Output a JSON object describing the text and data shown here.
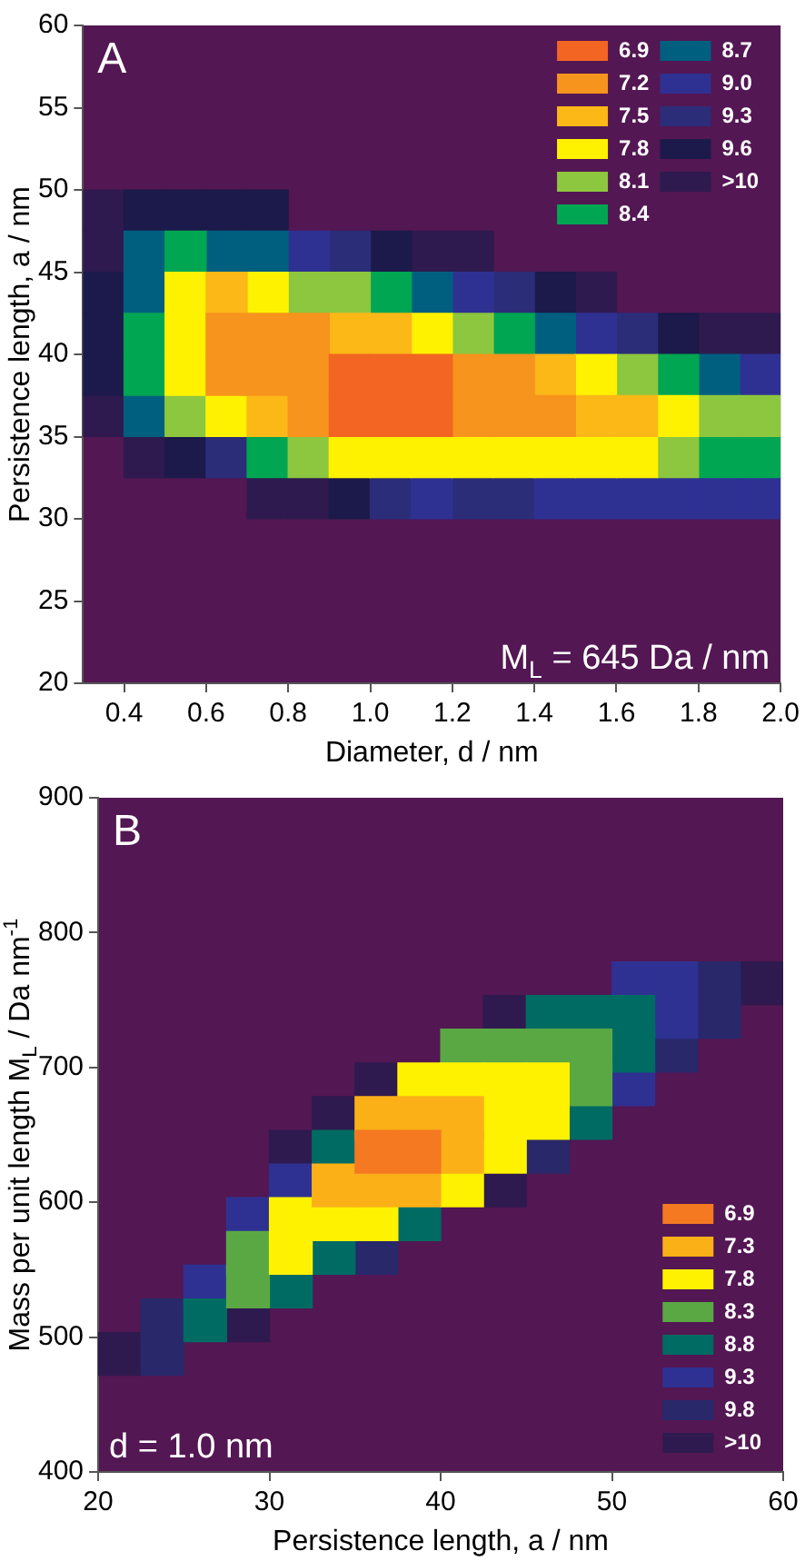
{
  "chart_data": [
    {
      "type": "scatter",
      "marker": "square",
      "legend": "top right",
      "xlabel": "Diameter, d / nm",
      "ylabel": "Persistence length, a / nm",
      "annotations": [
        "A",
        "M$_{L}$ = 645 Da / nm"
      ],
      "xlim": [
        0.3,
        2.0
      ],
      "ylim": [
        20,
        60
      ],
      "xticks": [
        0.4,
        0.6,
        0.8,
        {
          "value": 1,
          "label": "1.0"
        },
        1.2,
        1.4,
        1.6,
        1.8,
        {
          "value": 2,
          "label": "2.0"
        }
      ],
      "yticks": [
        20,
        25,
        30,
        35,
        40,
        45,
        50,
        55,
        60
      ],
      "series": [
        {
          "name": "6.9",
          "color": "#f26522",
          "x": [
            0.95,
            1.05,
            1.15,
            0.95,
            1.05,
            1.15
          ],
          "values": [
            38.75,
            38.75,
            38.75,
            36.25,
            36.25,
            36.25
          ]
        },
        {
          "name": "7.2",
          "color": "#f7941d",
          "x": [
            0.65,
            0.75,
            0.85,
            0.65,
            0.75,
            0.85,
            1.25,
            1.35,
            0.85,
            1.25,
            1.35,
            1.45
          ],
          "values": [
            41.25,
            41.25,
            41.25,
            38.75,
            38.75,
            38.75,
            38.75,
            38.75,
            36.25,
            36.25,
            36.25,
            36.25
          ]
        },
        {
          "name": "7.5",
          "color": "#fbb817",
          "x": [
            0.65,
            0.95,
            1.05,
            1.45,
            0.75,
            1.55,
            1.65
          ],
          "values": [
            43.75,
            41.25,
            41.25,
            38.75,
            36.25,
            36.25,
            36.25
          ]
        },
        {
          "name": "7.8",
          "color": "#fff200",
          "x": [
            0.55,
            0.75,
            0.55,
            1.15,
            0.55,
            1.55,
            0.65,
            1.75,
            0.95,
            1.05,
            1.15,
            1.25,
            1.35,
            1.45,
            1.55,
            1.65
          ],
          "values": [
            43.75,
            43.75,
            41.25,
            41.25,
            38.75,
            38.75,
            36.25,
            36.25,
            33.75,
            33.75,
            33.75,
            33.75,
            33.75,
            33.75,
            33.75,
            33.75
          ]
        },
        {
          "name": "8.1",
          "color": "#8dc63f",
          "x": [
            0.85,
            0.95,
            1.25,
            1.65,
            0.55,
            1.85,
            1.95,
            0.85,
            1.75
          ],
          "values": [
            43.75,
            43.75,
            41.25,
            38.75,
            36.25,
            36.25,
            36.25,
            33.75,
            33.75
          ]
        },
        {
          "name": "8.4",
          "color": "#00a651",
          "x": [
            0.55,
            1.05,
            0.45,
            1.35,
            0.45,
            1.75,
            0.75,
            1.85,
            1.95
          ],
          "values": [
            46.25,
            43.75,
            41.25,
            41.25,
            38.75,
            38.75,
            33.75,
            33.75,
            33.75
          ]
        },
        {
          "name": "8.7",
          "color": "#005f7f",
          "x": [
            0.45,
            0.65,
            0.75,
            0.45,
            1.15,
            1.45,
            1.85,
            0.45
          ],
          "values": [
            46.25,
            46.25,
            46.25,
            43.75,
            43.75,
            41.25,
            38.75,
            36.25
          ]
        },
        {
          "name": "9.0",
          "color": "#2e3192",
          "x": [
            0.85,
            1.25,
            1.55,
            1.95,
            1.15,
            1.45,
            1.55,
            1.65,
            1.75,
            1.85,
            1.95
          ],
          "values": [
            46.25,
            43.75,
            41.25,
            38.75,
            31.25,
            31.25,
            31.25,
            31.25,
            31.25,
            31.25,
            31.25
          ]
        },
        {
          "name": "9.3",
          "color": "#2b2d78",
          "x": [
            0.95,
            1.35,
            1.65,
            0.65,
            1.05,
            1.25,
            1.35
          ],
          "values": [
            46.25,
            43.75,
            41.25,
            33.75,
            31.25,
            31.25,
            31.25
          ]
        },
        {
          "name": "9.6",
          "color": "#1b1a4a",
          "x": [
            0.45,
            0.55,
            0.65,
            0.75,
            1.05,
            0.35,
            1.45,
            0.35,
            1.75,
            0.35,
            0.55,
            0.95
          ],
          "values": [
            48.75,
            48.75,
            48.75,
            48.75,
            46.25,
            43.75,
            43.75,
            41.25,
            41.25,
            38.75,
            33.75,
            31.25
          ]
        },
        {
          "name": ">10",
          "color": "#2e1a4e",
          "x": [
            0.35,
            0.35,
            1.15,
            1.25,
            1.55,
            1.85,
            1.95,
            0.35,
            0.45,
            0.75,
            0.85
          ],
          "values": [
            48.75,
            46.25,
            46.25,
            46.25,
            43.75,
            41.25,
            41.25,
            36.25,
            33.75,
            31.25,
            31.25
          ]
        }
      ]
    },
    {
      "type": "scatter",
      "marker": "square",
      "legend": "bottom right",
      "xlabel": "Persistence length, a / nm",
      "ylabel": "Mass per unit length M$_{L}$ / Da nm$^{-1}$",
      "annotations": [
        "B",
        "d = 1.0 nm"
      ],
      "xlim": [
        20,
        60
      ],
      "ylim": [
        400,
        900
      ],
      "xticks": [
        20,
        30,
        40,
        50,
        60
      ],
      "yticks": [
        400,
        500,
        600,
        700,
        800,
        900
      ],
      "series": [
        {
          "name": "6.9",
          "color": "#f47920",
          "x": [
            36.25,
            38.75
          ],
          "values": [
            637.5,
            637.5
          ]
        },
        {
          "name": "7.3",
          "color": "#fbb018",
          "x": [
            36.25,
            38.75,
            41.25,
            41.25,
            33.75,
            36.25,
            38.75
          ],
          "values": [
            662.5,
            662.5,
            662.5,
            637.5,
            612.5,
            612.5,
            612.5
          ]
        },
        {
          "name": "7.8",
          "color": "#fff200",
          "x": [
            38.75,
            41.25,
            43.75,
            46.25,
            43.75,
            46.25,
            43.75,
            41.25,
            31.25,
            33.75,
            36.25,
            31.25
          ],
          "values": [
            687.5,
            687.5,
            687.5,
            687.5,
            662.5,
            662.5,
            637.5,
            612.5,
            587.5,
            587.5,
            587.5,
            562.5
          ]
        },
        {
          "name": "8.3",
          "color": "#5aa844",
          "x": [
            41.25,
            43.75,
            46.25,
            48.75,
            48.75,
            28.75,
            28.75
          ],
          "values": [
            712.5,
            712.5,
            712.5,
            712.5,
            687.5,
            562.5,
            537.5
          ]
        },
        {
          "name": "8.8",
          "color": "#006b63",
          "x": [
            46.25,
            48.75,
            51.25,
            51.25,
            48.75,
            33.75,
            38.75,
            33.75,
            31.25,
            26.25
          ],
          "values": [
            737.5,
            737.5,
            737.5,
            712.5,
            662.5,
            637.5,
            587.5,
            562.5,
            537.5,
            512.5
          ]
        },
        {
          "name": "9.3",
          "color": "#2e3192",
          "x": [
            51.25,
            53.75,
            53.75,
            51.25,
            31.25,
            28.75,
            26.25
          ],
          "values": [
            762.5,
            762.5,
            737.5,
            687.5,
            612.5,
            587.5,
            537.5
          ]
        },
        {
          "name": "9.8",
          "color": "#28286a",
          "x": [
            56.25,
            56.25,
            53.75,
            46.25,
            36.25,
            23.75,
            23.75
          ],
          "values": [
            762.5,
            737.5,
            712.5,
            637.5,
            562.5,
            512.5,
            487.5
          ]
        },
        {
          "name": ">10",
          "color": "#2e1a4e",
          "x": [
            58.75,
            43.75,
            36.25,
            33.75,
            31.25,
            43.75,
            28.75,
            21.25
          ],
          "values": [
            762.5,
            737.5,
            687.5,
            662.5,
            637.5,
            612.5,
            512.5,
            487.5
          ]
        }
      ]
    }
  ]
}
